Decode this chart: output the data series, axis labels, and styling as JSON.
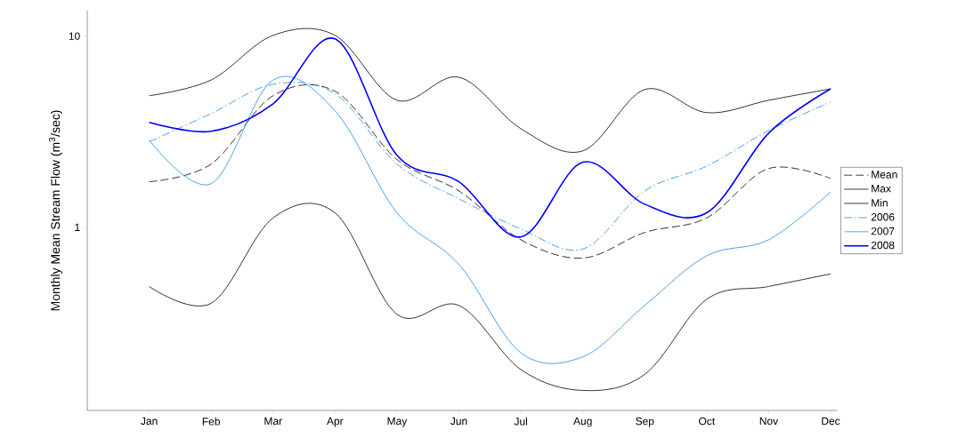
{
  "chart_data": {
    "type": "line",
    "ylabel": "Monthly Mean Stream Flow (m$^{3}$/sec)",
    "log": "y",
    "ylim": [
      0.11,
      13.6
    ],
    "yticks": [
      1,
      10
    ],
    "legend": "right",
    "grid": false,
    "categories": [
      "Jan",
      "Feb",
      "Mar",
      "Apr",
      "May",
      "Jun",
      "Jul",
      "Aug",
      "Sep",
      "Oct",
      "Nov",
      "Dec"
    ],
    "series": [
      {
        "name": "Mean",
        "color": "#000000",
        "line_style": "dashed",
        "values": [
          1.73,
          2.14,
          4.88,
          5.15,
          2.26,
          1.55,
          0.86,
          0.69,
          0.94,
          1.12,
          2.03,
          1.8
        ]
      },
      {
        "name": "Max",
        "color": "#000000",
        "line_style": "solid",
        "values": [
          4.88,
          5.9,
          10.1,
          10.1,
          4.62,
          6.1,
          3.28,
          2.51,
          5.26,
          3.98,
          4.62,
          5.3
        ]
      },
      {
        "name": "Min",
        "color": "#000000",
        "line_style": "solid",
        "values": [
          0.49,
          0.4,
          1.12,
          1.19,
          0.35,
          0.39,
          0.18,
          0.14,
          0.17,
          0.42,
          0.49,
          0.57
        ]
      },
      {
        "name": "2006",
        "color": "#1e88e5",
        "line_style": "dashdot",
        "values": [
          2.8,
          3.94,
          5.6,
          5.0,
          2.14,
          1.41,
          0.98,
          0.77,
          1.55,
          2.09,
          3.21,
          4.52
        ]
      },
      {
        "name": "2007",
        "color": "#1e88e5",
        "line_style": "solid",
        "values": [
          2.86,
          1.69,
          5.9,
          4.07,
          1.19,
          0.64,
          0.22,
          0.21,
          0.39,
          0.71,
          0.86,
          1.53
        ]
      },
      {
        "name": "2008",
        "color": "#0000ff",
        "line_style": "solid",
        "values": [
          3.54,
          3.18,
          4.43,
          9.67,
          2.38,
          1.73,
          0.89,
          2.19,
          1.32,
          1.19,
          3.11,
          5.3
        ]
      }
    ]
  }
}
